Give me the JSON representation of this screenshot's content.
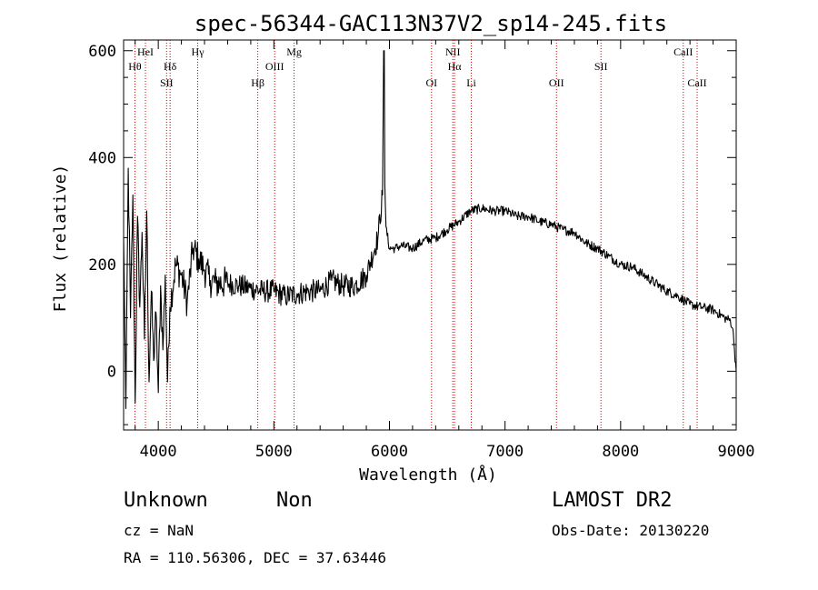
{
  "chart_data": {
    "type": "line",
    "title": "spec-56344-GAC113N37V2_sp14-245.fits",
    "xlabel": "Wavelength (Å)",
    "ylabel": "Flux (relative)",
    "xlim": [
      3700,
      9000
    ],
    "ylim": [
      -110,
      620
    ],
    "x_ticks": [
      4000,
      5000,
      6000,
      7000,
      8000,
      9000
    ],
    "y_ticks": [
      0,
      200,
      400,
      600
    ],
    "x_tick_labels": [
      "4000",
      "5000",
      "6000",
      "7000",
      "8000",
      "9000"
    ],
    "y_tick_labels": [
      "0",
      "200",
      "400",
      "600"
    ],
    "grid": false,
    "series": [
      {
        "color": "#000000",
        "x": [
          3700,
          3720,
          3740,
          3760,
          3780,
          3800,
          3820,
          3840,
          3860,
          3880,
          3900,
          3920,
          3940,
          3960,
          3980,
          4000,
          4020,
          4040,
          4060,
          4080,
          4100,
          4150,
          4200,
          4250,
          4300,
          4350,
          4400,
          4450,
          4500,
          4600,
          4700,
          4800,
          4900,
          5000,
          5100,
          5200,
          5300,
          5400,
          5500,
          5600,
          5700,
          5800,
          5900,
          5940,
          5950,
          5955,
          5960,
          5970,
          6000,
          6050,
          6100,
          6200,
          6300,
          6400,
          6500,
          6600,
          6700,
          6800,
          6900,
          7000,
          7100,
          7200,
          7300,
          7400,
          7500,
          7600,
          7700,
          7800,
          7900,
          8000,
          8100,
          8200,
          8300,
          8400,
          8500,
          8600,
          8700,
          8800,
          8900,
          8950,
          8970,
          8985,
          9000
        ],
        "y": [
          250,
          -70,
          380,
          100,
          330,
          -60,
          290,
          120,
          260,
          60,
          300,
          -20,
          150,
          20,
          110,
          -40,
          160,
          40,
          180,
          -20,
          120,
          200,
          180,
          130,
          230,
          210,
          190,
          170,
          165,
          165,
          160,
          155,
          150,
          150,
          140,
          145,
          150,
          150,
          170,
          160,
          160,
          180,
          250,
          330,
          600,
          600,
          350,
          270,
          230,
          230,
          235,
          230,
          245,
          250,
          265,
          280,
          300,
          305,
          300,
          300,
          290,
          290,
          280,
          275,
          265,
          260,
          240,
          230,
          215,
          200,
          195,
          180,
          165,
          150,
          140,
          125,
          120,
          115,
          100,
          95,
          80,
          40,
          0
        ]
      }
    ],
    "spectral_lines": [
      {
        "name": "Hθ",
        "wavelength": 3798,
        "row": 2
      },
      {
        "name": "HeI",
        "wavelength": 3889,
        "row": 1
      },
      {
        "name": "SII",
        "wavelength": 4072,
        "row": 3
      },
      {
        "name": "Hδ",
        "wavelength": 4102,
        "row": 2
      },
      {
        "name": "Hγ",
        "wavelength": 4341,
        "row": 1
      },
      {
        "name": "Hβ",
        "wavelength": 4861,
        "row": 3
      },
      {
        "name": "OIII",
        "wavelength": 5007,
        "row": 2
      },
      {
        "name": "Mg",
        "wavelength": 5175,
        "row": 1
      },
      {
        "name": "OI",
        "wavelength": 6364,
        "row": 3
      },
      {
        "name": "NII",
        "wavelength": 6548,
        "row": 1
      },
      {
        "name": "Hα",
        "wavelength": 6563,
        "row": 2
      },
      {
        "name": "Li",
        "wavelength": 6708,
        "row": 3
      },
      {
        "name": "OII",
        "wavelength": 7445,
        "row": 3
      },
      {
        "name": "SII",
        "wavelength": 7830,
        "row": 2
      },
      {
        "name": "CaII",
        "wavelength": 8542,
        "row": 1
      },
      {
        "name": "CaII",
        "wavelength": 8662,
        "row": 3
      }
    ]
  },
  "info": {
    "object_class": "Unknown",
    "object_subclass": "Non",
    "survey": "LAMOST DR2",
    "cz": "cz = NaN",
    "obs_date": "Obs-Date: 20130220",
    "coords": "RA = 110.56306, DEC =  37.63446"
  }
}
